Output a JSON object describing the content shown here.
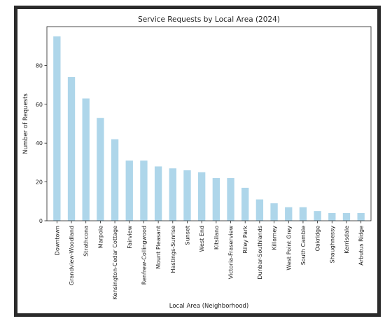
{
  "chart_data": {
    "type": "bar",
    "title": "Service Requests by Local Area (2024)",
    "xlabel": "Local Area (Neighborhood)",
    "ylabel": "Number of Requests",
    "ylim": [
      0,
      100
    ],
    "yticks": [
      0,
      20,
      40,
      60,
      80
    ],
    "grid": false,
    "bar_color": "#aed6ea",
    "categories": [
      "Downtown",
      "Grandview-Woodland",
      "Strathcona",
      "Marpole",
      "Kensington-Cedar Cottage",
      "Fairview",
      "Renfrew-Collingwood",
      "Mount Pleasant",
      "Hastings-Sunrise",
      "Sunset",
      "West End",
      "Kitsilano",
      "Victoria-Fraserview",
      "Riley Park",
      "Dunbar-Southlands",
      "Killarney",
      "West Point Grey",
      "South Cambie",
      "Oakridge",
      "Shaughnessy",
      "Kerrisdale",
      "Arbutus Ridge"
    ],
    "values": [
      95,
      74,
      63,
      53,
      42,
      31,
      31,
      28,
      27,
      26,
      25,
      22,
      22,
      17,
      11,
      9,
      7,
      7,
      5,
      4,
      4,
      4
    ]
  }
}
